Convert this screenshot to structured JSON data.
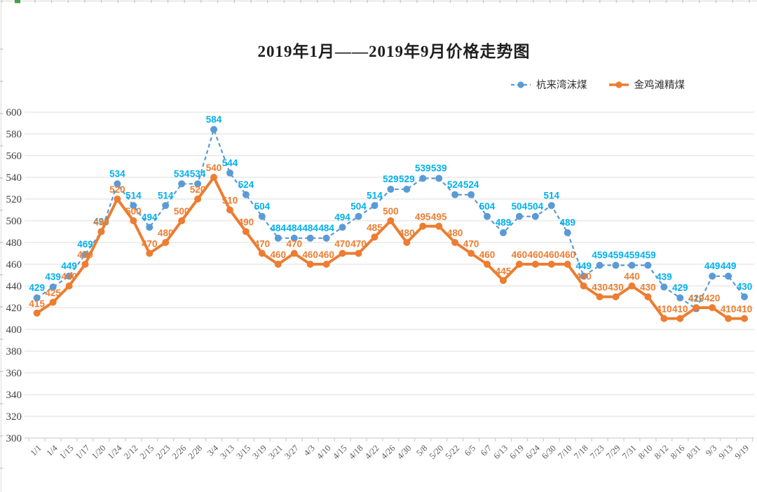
{
  "title": "2019年1月——2019年9月价格走势图",
  "legend": {
    "items": [
      {
        "label": "杭来湾沫煤"
      },
      {
        "label": "金鸡滩精煤"
      }
    ]
  },
  "colors": {
    "series1_line": "#5B9BD5",
    "series1_label": "#00B0F0",
    "series2_line": "#ED7D31",
    "series2_label": "#ED7D31",
    "gridline": "#DCDCDC",
    "axis": "#C6C6C6",
    "ytick_text": "#404040",
    "xtick_text": "#595959",
    "edge_tick": "#C9C9C9",
    "edge_line": "#E3E3E3",
    "edge_green_mark": "#43A047"
  },
  "chart_data": {
    "type": "line",
    "title": "2019年1月——2019年9月价格走势图",
    "categories": [
      "1/1",
      "1/4",
      "1/15",
      "1/17",
      "1/20",
      "1/24",
      "2/12",
      "2/15",
      "2/23",
      "2/26",
      "2/28",
      "3/4",
      "3/13",
      "3/15",
      "3/19",
      "3/21",
      "3/27",
      "4/3",
      "4/10",
      "4/15",
      "4/18",
      "4/22",
      "4/26",
      "4/30",
      "5/8",
      "5/20",
      "5/22",
      "6/5",
      "6/7",
      "6/13",
      "6/19",
      "6/24",
      "6/30",
      "7/10",
      "7/18",
      "7/23",
      "7/29",
      "7/31",
      "8/10",
      "8/12",
      "8/16",
      "8/31",
      "9/3",
      "9/13",
      "9/19"
    ],
    "series": [
      {
        "name": "杭来湾沫煤",
        "line": "dashed",
        "color": "#5B9BD5",
        "label_color": "#00B0F0",
        "values": [
          429,
          439,
          449,
          469,
          490,
          534,
          514,
          494,
          514,
          534,
          534,
          584,
          544,
          524,
          504,
          484,
          484,
          484,
          484,
          494,
          504,
          514,
          529,
          529,
          539,
          539,
          524,
          524,
          504,
          489,
          504,
          504,
          514,
          489,
          449,
          459,
          459,
          459,
          459,
          439,
          429,
          419,
          449,
          449,
          430
        ]
      },
      {
        "name": "金鸡滩精煤",
        "line": "solid",
        "color": "#ED7D31",
        "label_color": "#ED7D31",
        "values": [
          415,
          425,
          440,
          460,
          490,
          520,
          500,
          470,
          480,
          500,
          520,
          540,
          510,
          490,
          470,
          460,
          470,
          460,
          460,
          470,
          470,
          485,
          500,
          480,
          495,
          495,
          480,
          470,
          460,
          445,
          460,
          460,
          460,
          460,
          440,
          430,
          430,
          440,
          430,
          410,
          410,
          420,
          420,
          410,
          410
        ]
      }
    ],
    "ylim": [
      300,
      600
    ],
    "ytick_step": 20,
    "yticks": [
      600,
      580,
      560,
      540,
      520,
      500,
      480,
      460,
      440,
      420,
      400,
      380,
      360,
      340,
      320,
      300
    ],
    "grid": true,
    "data_labels": true,
    "legend_position": "top-right",
    "xlabel": "",
    "ylabel": ""
  }
}
